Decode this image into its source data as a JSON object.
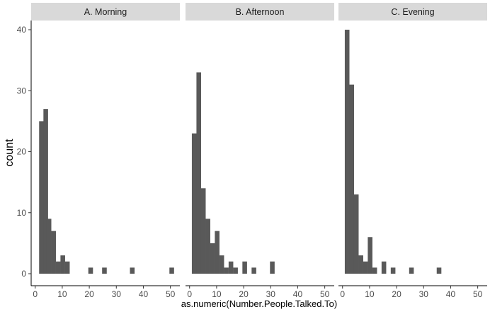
{
  "chart_data": {
    "type": "bar",
    "subtype": "faceted-histogram",
    "xlabel": "as.numeric(Number.People.Talked.To)",
    "ylabel": "count",
    "xlim": [
      -1.5,
      53.5
    ],
    "ylim": [
      0,
      42
    ],
    "x_ticks": [
      0,
      10,
      20,
      30,
      40,
      50
    ],
    "y_ticks": [
      0,
      10,
      20,
      30,
      40
    ],
    "bin_width": 1.72,
    "grid": false,
    "bar_color": "#595959",
    "strip_color": "#d9d9d9",
    "panels": [
      {
        "title": "A. Morning",
        "bins": [
          {
            "x": 2.3,
            "count": 25
          },
          {
            "x": 3.9,
            "count": 27
          },
          {
            "x": 5.1,
            "count": 9
          },
          {
            "x": 6.8,
            "count": 7
          },
          {
            "x": 8.5,
            "count": 2
          },
          {
            "x": 10.2,
            "count": 3
          },
          {
            "x": 11.9,
            "count": 2
          },
          {
            "x": 20.5,
            "count": 1
          },
          {
            "x": 25.6,
            "count": 1
          },
          {
            "x": 35.9,
            "count": 1
          },
          {
            "x": 50.5,
            "count": 1
          }
        ]
      },
      {
        "title": "B. Afternoon",
        "bins": [
          {
            "x": 1.7,
            "count": 23
          },
          {
            "x": 3.4,
            "count": 33
          },
          {
            "x": 5.1,
            "count": 14
          },
          {
            "x": 6.8,
            "count": 9
          },
          {
            "x": 8.5,
            "count": 5
          },
          {
            "x": 10.2,
            "count": 7
          },
          {
            "x": 11.9,
            "count": 3
          },
          {
            "x": 13.6,
            "count": 1
          },
          {
            "x": 15.3,
            "count": 2
          },
          {
            "x": 17.0,
            "count": 1
          },
          {
            "x": 20.4,
            "count": 2
          },
          {
            "x": 23.8,
            "count": 1
          },
          {
            "x": 30.6,
            "count": 2
          }
        ]
      },
      {
        "title": "C. Evening",
        "bins": [
          {
            "x": 1.7,
            "count": 40
          },
          {
            "x": 3.4,
            "count": 31
          },
          {
            "x": 5.1,
            "count": 13
          },
          {
            "x": 6.8,
            "count": 3
          },
          {
            "x": 8.5,
            "count": 2
          },
          {
            "x": 10.2,
            "count": 6
          },
          {
            "x": 11.9,
            "count": 1
          },
          {
            "x": 15.3,
            "count": 2
          },
          {
            "x": 18.7,
            "count": 1
          },
          {
            "x": 25.5,
            "count": 1
          },
          {
            "x": 35.7,
            "count": 1
          }
        ]
      }
    ]
  }
}
